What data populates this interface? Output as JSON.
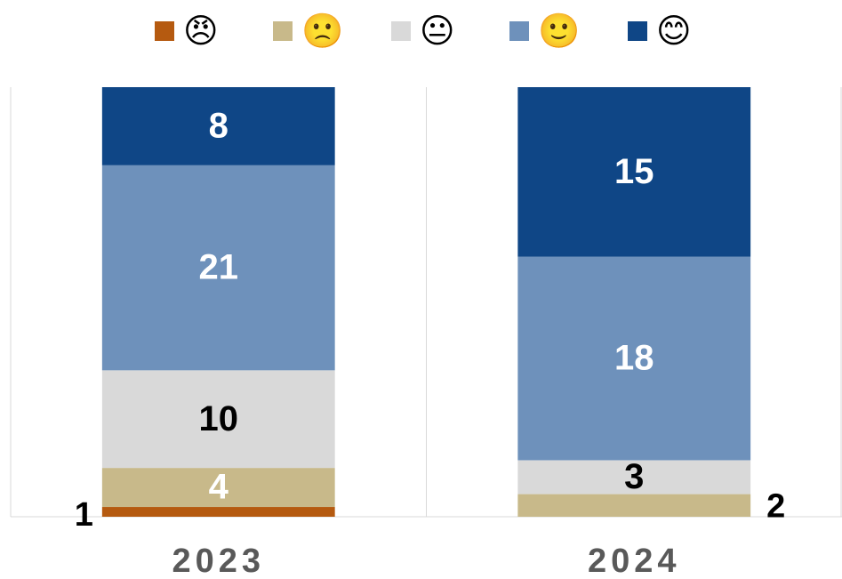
{
  "chart_data": {
    "type": "bar",
    "stack": "percent",
    "categories": [
      "2023",
      "2024"
    ],
    "series": [
      {
        "name": "😠",
        "color": "#b55a10",
        "label_color": "#000000",
        "values": [
          1,
          null
        ]
      },
      {
        "name": "🙁",
        "color": "#c8b98a",
        "label_color": "#ffffff",
        "values": [
          4,
          2
        ]
      },
      {
        "name": "😐",
        "color": "#d9d9d9",
        "label_color": "#000000",
        "values": [
          10,
          3
        ]
      },
      {
        "name": "🙂",
        "color": "#6e91bb",
        "label_color": "#ffffff",
        "values": [
          21,
          18
        ]
      },
      {
        "name": "😊",
        "color": "#0f4686",
        "label_color": "#ffffff",
        "values": [
          8,
          15
        ]
      }
    ],
    "legend": "top"
  }
}
